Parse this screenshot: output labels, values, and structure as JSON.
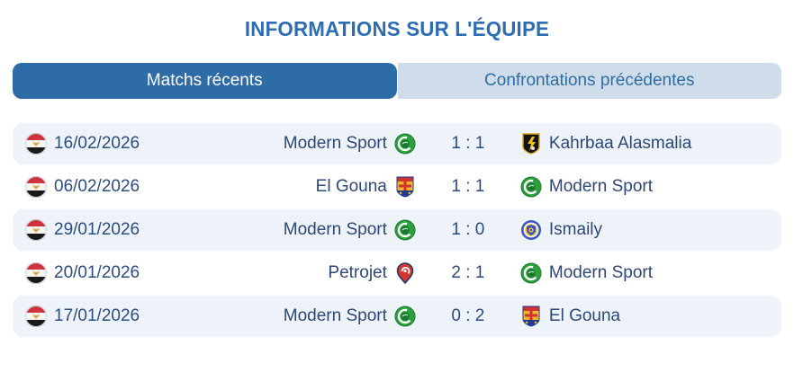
{
  "title": "INFORMATIONS SUR L'ÉQUIPE",
  "tabs": {
    "recent": {
      "label": "Matchs récents",
      "active": true
    },
    "head_to_head": {
      "label": "Confrontations précédentes",
      "active": false
    }
  },
  "colors": {
    "title_blue": "#2d6db3",
    "active_tab_bg": "#2e6ca8",
    "active_tab_text": "#ffffff",
    "inactive_tab_bg": "#cfdcea",
    "inactive_tab_text": "#2e6da4",
    "row_alt_bg": "#edf3f9",
    "row_text": "#2d4777"
  },
  "flag_icon": "egypt-flag",
  "matches": [
    {
      "date": "16/02/2026",
      "home_team": "Modern Sport",
      "home_logo": "modern-sport-logo",
      "score": "1 : 1",
      "away_logo": "kahrbaa-alasmalia-logo",
      "away_team": "Kahrbaa Alasmalia"
    },
    {
      "date": "06/02/2026",
      "home_team": "El Gouna",
      "home_logo": "el-gouna-logo",
      "score": "1 : 1",
      "away_logo": "modern-sport-logo",
      "away_team": "Modern Sport"
    },
    {
      "date": "29/01/2026",
      "home_team": "Modern Sport",
      "home_logo": "modern-sport-logo",
      "score": "1 : 0",
      "away_logo": "ismaily-logo",
      "away_team": "Ismaily"
    },
    {
      "date": "20/01/2026",
      "home_team": "Petrojet",
      "home_logo": "petrojet-logo",
      "score": "2 : 1",
      "away_logo": "modern-sport-logo",
      "away_team": "Modern Sport"
    },
    {
      "date": "17/01/2026",
      "home_team": "Modern Sport",
      "home_logo": "modern-sport-logo",
      "score": "0 : 2",
      "away_logo": "el-gouna-logo",
      "away_team": "El Gouna"
    }
  ]
}
